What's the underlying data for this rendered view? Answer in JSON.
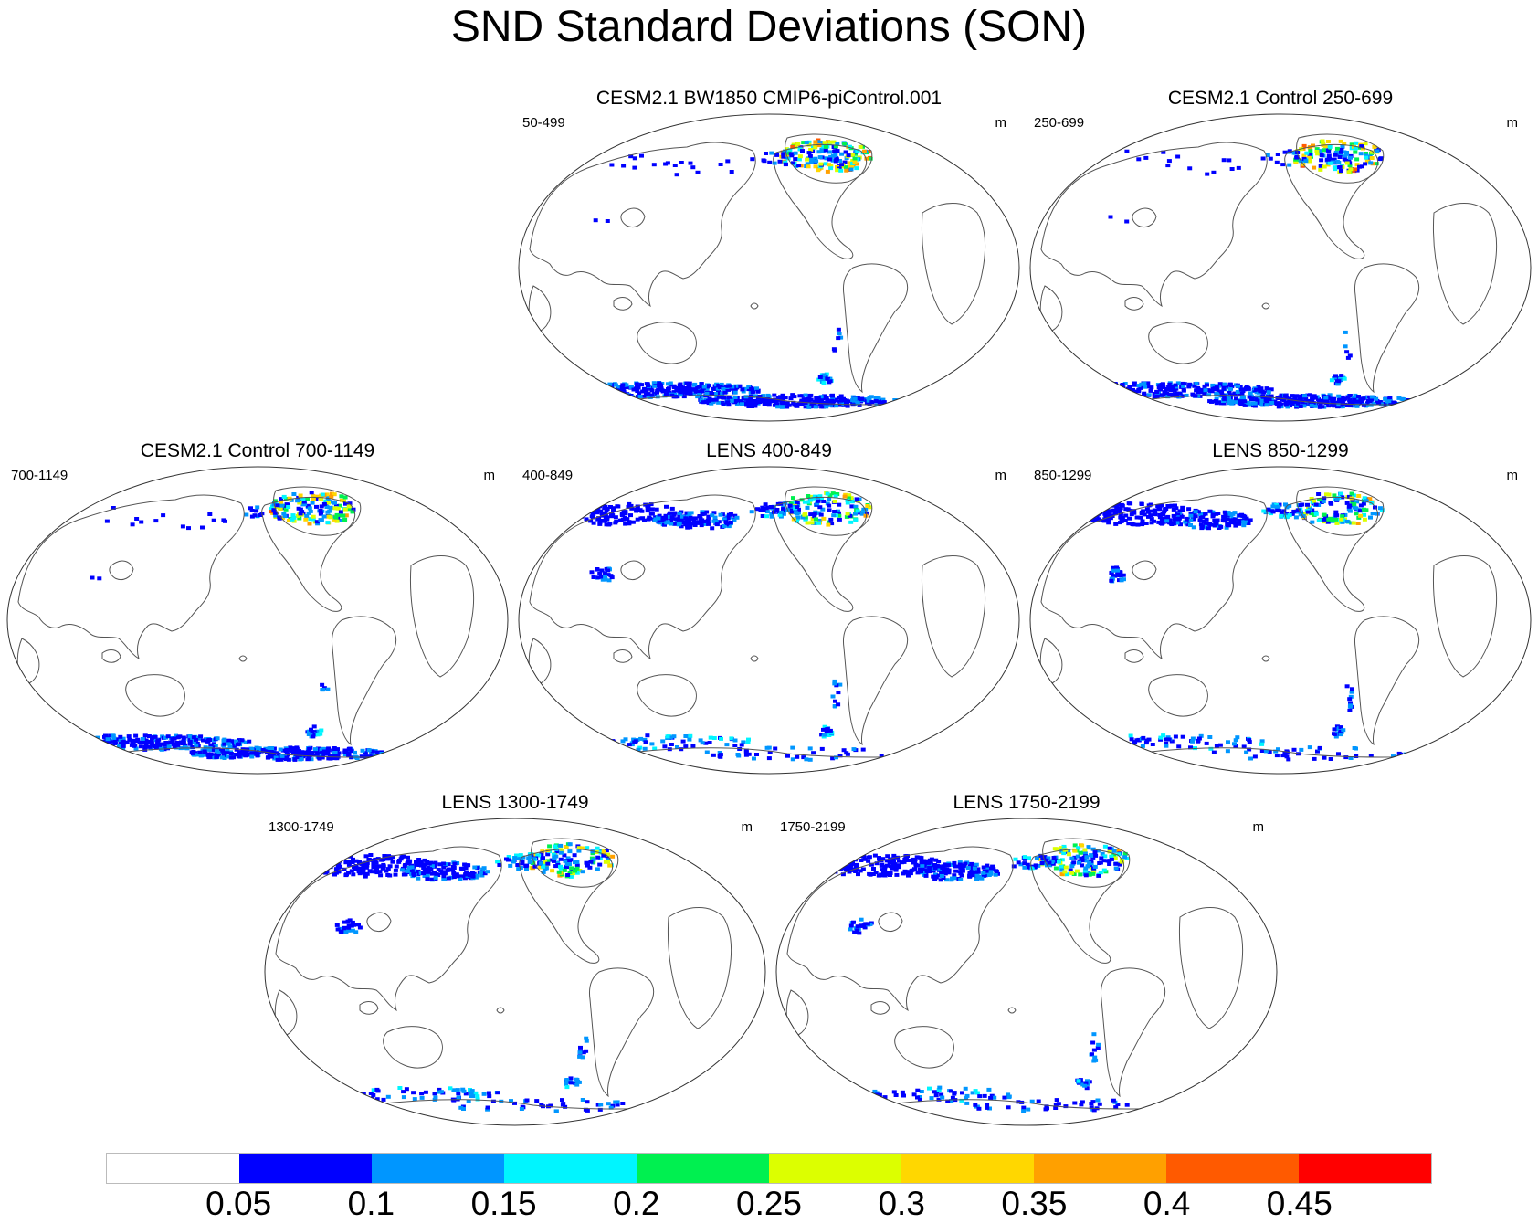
{
  "figure": {
    "title": "SND Standard Deviations (SON)",
    "units": "m"
  },
  "panels": [
    {
      "title": "CESM2.1 BW1850 CMIP6-piControl.001",
      "period": "50-499",
      "units": "m",
      "profile": "control-early"
    },
    {
      "title": "CESM2.1 Control 250-699",
      "period": "250-699",
      "units": "m",
      "profile": "control"
    },
    {
      "title": "CESM2.1 Control 700-1149",
      "period": "700-1149",
      "units": "m",
      "profile": "control"
    },
    {
      "title": "LENS 400-849",
      "period": "400-849",
      "units": "m",
      "profile": "lens"
    },
    {
      "title": "LENS 850-1299",
      "period": "850-1299",
      "units": "m",
      "profile": "lens"
    },
    {
      "title": "LENS 1300-1749",
      "period": "1300-1749",
      "units": "m",
      "profile": "lens"
    },
    {
      "title": "LENS 1750-2199",
      "period": "1750-2199",
      "units": "m",
      "profile": "lens"
    }
  ],
  "colorbar": {
    "labels": [
      "0.05",
      "0.1",
      "0.15",
      "0.2",
      "0.25",
      "0.3",
      "0.35",
      "0.4",
      "0.45"
    ],
    "colors": [
      "#ffffff",
      "#0000ff",
      "#0096ff",
      "#00f5ff",
      "#00f050",
      "#dcff00",
      "#ffd700",
      "#ffa000",
      "#ff5a00",
      "#ff0000"
    ]
  }
}
